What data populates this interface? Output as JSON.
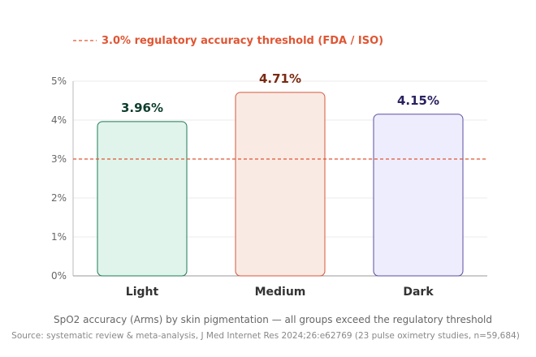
{
  "chart_data": {
    "type": "bar",
    "categories": [
      "Light",
      "Medium",
      "Dark"
    ],
    "values": [
      3.96,
      4.71,
      4.15
    ],
    "value_labels": [
      "3.96%",
      "4.71%",
      "4.15%"
    ],
    "ylim": [
      0,
      5
    ],
    "yticks": [
      "0%",
      "1%",
      "2%",
      "3%",
      "4%",
      "5%"
    ],
    "grid": true,
    "threshold": {
      "value": 3.0,
      "label": "3.0% regulatory accuracy threshold (FDA / ISO)",
      "color": "#e05533"
    },
    "legend_position": "top-left",
    "bar_colors": [
      {
        "fill": "#e0f4ec",
        "stroke": "#1e7a55",
        "label": "#0d3d2c"
      },
      {
        "fill": "#faeae4",
        "stroke": "#d4583a",
        "label": "#7a2a10"
      },
      {
        "fill": "#eeedfd",
        "stroke": "#5a4ea0",
        "label": "#2a2260"
      }
    ]
  },
  "caption": "SpO2 accuracy (Arms) by skin pigmentation — all groups exceed the regulatory threshold",
  "source": "Source: systematic review & meta-analysis, J Med Internet Res 2024;26:e62769 (23 pulse oximetry studies, n=59,684)"
}
